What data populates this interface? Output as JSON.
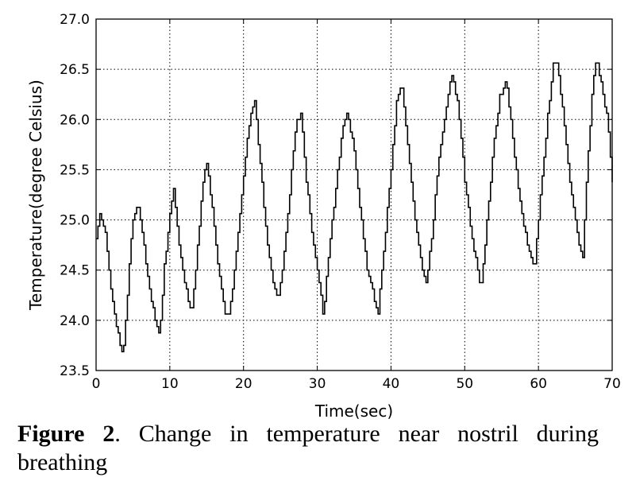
{
  "chart_data": {
    "type": "line",
    "step": true,
    "xlabel": "Time(sec)",
    "ylabel": "Temperature(degree Celsius)",
    "xlim": [
      0,
      70
    ],
    "ylim": [
      23.5,
      27.0
    ],
    "xticks": [
      "0",
      "10",
      "20",
      "30",
      "40",
      "50",
      "60",
      "70"
    ],
    "yticks": [
      "23.5",
      "24.0",
      "24.5",
      "25.0",
      "25.5",
      "26.0",
      "26.5",
      "27.0"
    ],
    "grid": true,
    "grid_style": "dotted",
    "line_color": "#000000",
    "series": [
      {
        "points": [
          [
            0,
            24.8
          ],
          [
            0.4,
            25.05
          ],
          [
            1.2,
            24.9
          ],
          [
            2.2,
            24.2
          ],
          [
            3.0,
            23.85
          ],
          [
            3.6,
            23.62
          ],
          [
            4.2,
            24.2
          ],
          [
            4.8,
            24.9
          ],
          [
            5.6,
            25.18
          ],
          [
            6.4,
            24.8
          ],
          [
            7.2,
            24.3
          ],
          [
            8.2,
            23.95
          ],
          [
            8.6,
            23.82
          ],
          [
            9.2,
            24.5
          ],
          [
            10.0,
            25.05
          ],
          [
            10.5,
            25.3
          ],
          [
            11.2,
            24.8
          ],
          [
            12.2,
            24.3
          ],
          [
            12.9,
            24.05
          ],
          [
            13.6,
            24.6
          ],
          [
            14.4,
            25.3
          ],
          [
            14.9,
            25.62
          ],
          [
            15.6,
            25.2
          ],
          [
            16.6,
            24.5
          ],
          [
            17.4,
            24.1
          ],
          [
            18.0,
            24.05
          ],
          [
            18.8,
            24.5
          ],
          [
            19.8,
            25.3
          ],
          [
            20.6,
            25.9
          ],
          [
            21.5,
            26.2
          ],
          [
            22.3,
            25.5
          ],
          [
            23.2,
            24.8
          ],
          [
            24.0,
            24.4
          ],
          [
            24.6,
            24.2
          ],
          [
            25.4,
            24.6
          ],
          [
            26.4,
            25.4
          ],
          [
            27.1,
            25.95
          ],
          [
            27.8,
            26.05
          ],
          [
            28.5,
            25.4
          ],
          [
            29.4,
            24.8
          ],
          [
            30.4,
            24.3
          ],
          [
            30.8,
            24.05
          ],
          [
            31.6,
            24.7
          ],
          [
            32.6,
            25.4
          ],
          [
            33.4,
            25.9
          ],
          [
            34.0,
            26.06
          ],
          [
            34.8,
            25.8
          ],
          [
            35.8,
            25.1
          ],
          [
            36.8,
            24.5
          ],
          [
            37.8,
            24.2
          ],
          [
            38.2,
            24.05
          ],
          [
            39.0,
            24.7
          ],
          [
            40.0,
            25.5
          ],
          [
            40.8,
            26.2
          ],
          [
            41.4,
            26.37
          ],
          [
            42.2,
            25.8
          ],
          [
            43.2,
            25.0
          ],
          [
            44.2,
            24.5
          ],
          [
            44.8,
            24.37
          ],
          [
            45.6,
            24.9
          ],
          [
            46.6,
            25.7
          ],
          [
            47.6,
            26.2
          ],
          [
            48.2,
            26.45
          ],
          [
            49.0,
            26.2
          ],
          [
            50.0,
            25.4
          ],
          [
            51.0,
            24.8
          ],
          [
            52.0,
            24.4
          ],
          [
            52.3,
            24.37
          ],
          [
            53.0,
            25.0
          ],
          [
            54.0,
            25.8
          ],
          [
            54.8,
            26.25
          ],
          [
            55.6,
            26.37
          ],
          [
            56.4,
            25.9
          ],
          [
            57.4,
            25.2
          ],
          [
            58.4,
            24.8
          ],
          [
            59.4,
            24.5
          ],
          [
            60.2,
            25.2
          ],
          [
            61.2,
            26.0
          ],
          [
            62.0,
            26.55
          ],
          [
            62.6,
            26.56
          ],
          [
            63.4,
            26.0
          ],
          [
            64.4,
            25.3
          ],
          [
            65.4,
            24.8
          ],
          [
            66.0,
            24.63
          ],
          [
            66.6,
            25.5
          ],
          [
            67.4,
            26.4
          ],
          [
            67.9,
            26.62
          ],
          [
            68.6,
            26.3
          ],
          [
            69.4,
            26.0
          ],
          [
            70.0,
            25.4
          ]
        ]
      }
    ]
  },
  "caption": {
    "label": "Figure 2",
    "text": ". Change in temperature near nostril during breathing"
  }
}
